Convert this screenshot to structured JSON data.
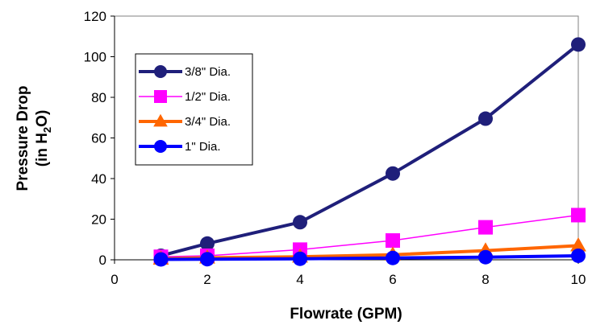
{
  "chart_data": {
    "type": "line",
    "title": "",
    "xlabel": "Flowrate (GPM)",
    "ylabel_line1": "Pressure Drop",
    "ylabel_line2_prefix": "(in H",
    "ylabel_line2_sub": "2",
    "ylabel_line2_suffix": "O)",
    "xlim": [
      0,
      10
    ],
    "ylim": [
      0,
      120
    ],
    "x_ticks": [
      0,
      2,
      4,
      6,
      8,
      10
    ],
    "y_ticks": [
      0,
      20,
      40,
      60,
      80,
      100,
      120
    ],
    "grid": false,
    "legend_position": "top-left",
    "x": [
      1,
      2,
      4,
      6,
      8,
      10
    ],
    "series": [
      {
        "name": "3/8\" Dia.",
        "color": "#1f1f7a",
        "marker": "circle",
        "values": [
          2,
          8,
          18.5,
          42.5,
          69.5,
          106
        ]
      },
      {
        "name": "1/2\" Dia.",
        "color": "#ff00ff",
        "marker": "square",
        "values": [
          1.5,
          2,
          5,
          9.5,
          16,
          22
        ]
      },
      {
        "name": "3/4\" Dia.",
        "color": "#ff6600",
        "marker": "triangle",
        "values": [
          0.5,
          1,
          1.5,
          2.5,
          4.5,
          7
        ]
      },
      {
        "name": "1\" Dia.",
        "color": "#0000ff",
        "marker": "circle",
        "values": [
          0.2,
          0.3,
          0.5,
          0.9,
          1.3,
          2
        ]
      }
    ]
  }
}
